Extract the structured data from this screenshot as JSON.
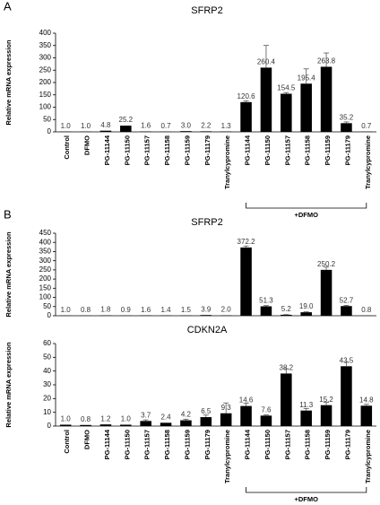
{
  "chart_data": [
    {
      "type": "bar",
      "panel_label": "A",
      "title": "SFRP2",
      "ylabel": "Relative mRNA expression",
      "categories": [
        "Control",
        "DFMO",
        "PG-11144",
        "PG-11150",
        "PG-11157",
        "PG-11158",
        "PG-11159",
        "PG-11179",
        "Tranylcypromine",
        "PG-11144",
        "PG-11150",
        "PG-11157",
        "PG-11158",
        "PG-11159",
        "PG-11179",
        "Tranylcypromine"
      ],
      "values": [
        1.0,
        1.0,
        4.8,
        25.2,
        1.6,
        0.7,
        3.0,
        2.2,
        1.3,
        120.6,
        260.4,
        154.5,
        195.4,
        263.8,
        35.2,
        0.7
      ],
      "value_labels": [
        "1.0",
        "1.0",
        "4.8",
        "25.2",
        "1.6",
        "0.7",
        "3.0",
        "2.2",
        "1.3",
        "120.6",
        "260.4",
        "154.5",
        "195.4",
        "263.8",
        "35.2",
        "0.7"
      ],
      "errors": [
        0,
        0,
        0,
        0,
        0,
        0,
        0,
        0,
        0,
        5,
        90,
        5,
        60,
        56,
        5,
        0
      ],
      "color": "#000000",
      "ylim": [
        0,
        400
      ],
      "yticks": [
        0,
        50,
        100,
        150,
        200,
        250,
        300,
        350,
        400
      ],
      "annotation": "+DFMO"
    },
    {
      "type": "bar",
      "panel_label": "B",
      "title": "SFRP2",
      "ylabel": "Relative mRNA expression",
      "values": [
        1.0,
        0.8,
        1.8,
        0.9,
        1.6,
        1.4,
        1.5,
        3.9,
        2.0,
        372.2,
        51.3,
        5.2,
        19.0,
        250.2,
        52.7,
        0.8
      ],
      "value_labels": [
        "1.0",
        "0.8",
        "1.8",
        "0.9",
        "1.6",
        "1.4",
        "1.5",
        "3.9",
        "2.0",
        "372.2",
        "51.3",
        "5.2",
        "19.0",
        "250.2",
        "52.7",
        "0.8"
      ],
      "errors": [
        0,
        0,
        0,
        0,
        0,
        0,
        0,
        0,
        0,
        8,
        4,
        1,
        2,
        15,
        4,
        0
      ],
      "color": "#000000",
      "ylim": [
        0,
        450
      ],
      "yticks": [
        0,
        50,
        100,
        150,
        200,
        250,
        300,
        350,
        400,
        450
      ]
    },
    {
      "type": "bar",
      "title": "CDKN2A",
      "ylabel": "Relative mRNA expression",
      "categories": [
        "Control",
        "DFMO",
        "PG-11144",
        "PG-11150",
        "PG-11157",
        "PG-11158",
        "PG-11159",
        "PG-11179",
        "Tranylcypromine",
        "PG-11144",
        "PG-11150",
        "PG-11157",
        "PG-11158",
        "PG-11159",
        "PG-11179",
        "Tranylcypromine"
      ],
      "values": [
        1.0,
        0.8,
        1.2,
        1.0,
        3.7,
        2.4,
        4.2,
        6.5,
        9.3,
        14.6,
        7.6,
        38.2,
        11.3,
        15.2,
        43.5,
        14.8
      ],
      "value_labels": [
        "1.0",
        "0.8",
        "1.2",
        "1.0",
        "3.7",
        "2.4",
        "4.2",
        "6.5",
        "9.3",
        "14.6",
        "7.6",
        "38.2",
        "11.3",
        "15.2",
        "43.5",
        "14.8"
      ],
      "errors": [
        0,
        0,
        0,
        0,
        0.8,
        0,
        0.8,
        1.5,
        7.5,
        2,
        0.5,
        3.5,
        1.5,
        2,
        3,
        1
      ],
      "color": "#000000",
      "ylim": [
        0,
        60
      ],
      "yticks": [
        0,
        10,
        20,
        30,
        40,
        50,
        60
      ],
      "annotation": "+DFMO"
    }
  ]
}
